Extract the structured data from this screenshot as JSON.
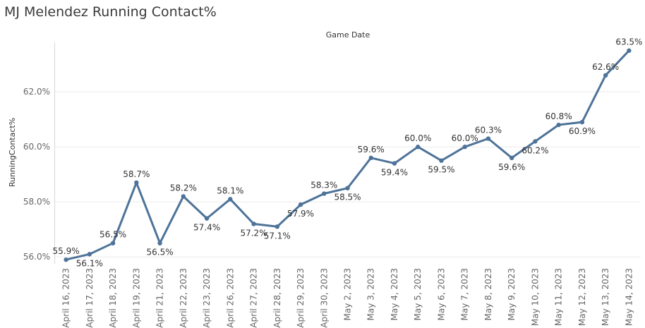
{
  "chart_data": {
    "type": "line",
    "title": "MJ Melendez Running Contact%",
    "xlabel": "Game Date",
    "ylabel": "RunningContact%",
    "ylim": [
      55.75,
      63.8
    ],
    "yticks": [
      56.0,
      58.0,
      60.0,
      62.0
    ],
    "ytick_labels": [
      "56.0%",
      "58.0%",
      "60.0%",
      "62.0%"
    ],
    "color": "#4e7399",
    "categories": [
      "April 16, 2023",
      "April 17, 2023",
      "April 18, 2023",
      "April 19, 2023",
      "April 21, 2023",
      "April 22, 2023",
      "April 23, 2023",
      "April 26, 2023",
      "April 27, 2023",
      "April 28, 2023",
      "April 29, 2023",
      "April 30, 2023",
      "May 2, 2023",
      "May 3, 2023",
      "May 4, 2023",
      "May 5, 2023",
      "May 6, 2023",
      "May 7, 2023",
      "May 8, 2023",
      "May 9, 2023",
      "May 10, 2023",
      "May 11, 2023",
      "May 12, 2023",
      "May 13, 2023",
      "May 14, 2023"
    ],
    "values": [
      55.9,
      56.1,
      56.5,
      58.7,
      56.5,
      58.2,
      57.4,
      58.1,
      57.2,
      57.1,
      57.9,
      58.3,
      58.5,
      59.6,
      59.4,
      60.0,
      59.5,
      60.0,
      60.3,
      59.6,
      60.2,
      60.8,
      60.9,
      62.6,
      63.5
    ],
    "labels": [
      "55.9%",
      "56.1%",
      "56.5%",
      "58.7%",
      "56.5%",
      "58.2%",
      "57.4%",
      "58.1%",
      "57.2%",
      "57.1%",
      "57.9%",
      "58.3%",
      "58.5%",
      "59.6%",
      "59.4%",
      "60.0%",
      "59.5%",
      "60.0%",
      "60.3%",
      "59.6%",
      "60.2%",
      "60.8%",
      "60.9%",
      "62.6%",
      "63.5%"
    ],
    "label_pos": [
      "above",
      "below",
      "above",
      "above",
      "below",
      "above",
      "below",
      "above",
      "below",
      "below",
      "below",
      "above",
      "below",
      "above",
      "below",
      "above",
      "below",
      "above",
      "above",
      "below",
      "below",
      "above",
      "below",
      "above",
      "above"
    ]
  }
}
